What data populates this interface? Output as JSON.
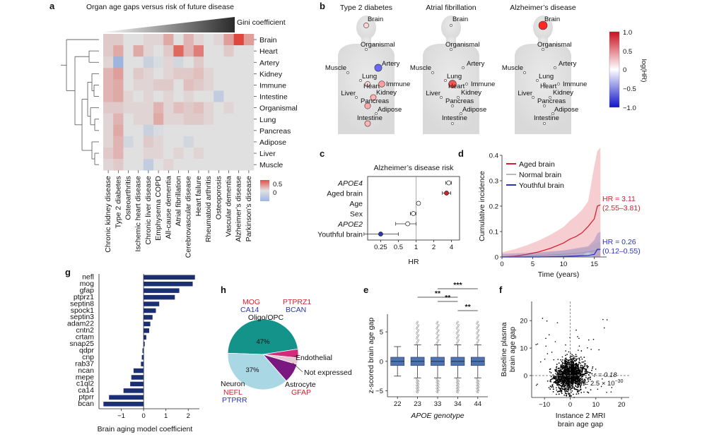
{
  "colors": {
    "red": "#d6202f",
    "blue": "#2a36b8",
    "navy": "#1b2f72",
    "teal": "#13938a",
    "lightblue": "#a9d8e4",
    "purple": "#7a1780",
    "magenta": "#d42a79",
    "pink_grey": "#e9c4d2",
    "boxblue": "#4f75b1"
  },
  "panels": {
    "a": {
      "letter": "a",
      "title": "Organ age gaps versus risk of future disease",
      "gini_label": "Gini coefficient",
      "colorbar_ticks": [
        "0.5",
        "0"
      ]
    },
    "b": {
      "letter": "b",
      "bodies": [
        {
          "title": "Type 2 diabetes",
          "organs": [
            {
              "name": "Brain",
              "hr": 0.2
            },
            {
              "name": "Organismal",
              "hr": 0.0
            },
            {
              "name": "Artery",
              "hr": -0.7
            },
            {
              "name": "Muscle",
              "hr": 0.0
            },
            {
              "name": "Lung",
              "hr": 0.05
            },
            {
              "name": "Heart",
              "hr": 0.2
            },
            {
              "name": "Immune",
              "hr": 0.45
            },
            {
              "name": "Liver",
              "hr": 0.05
            },
            {
              "name": "Kidney",
              "hr": 0.35
            },
            {
              "name": "Pancreas",
              "hr": 0.4
            },
            {
              "name": "Adipose",
              "hr": 0.1
            },
            {
              "name": "Intestine",
              "hr": 0.35
            }
          ]
        },
        {
          "title": "Atrial fibrillation",
          "organs": [
            {
              "name": "Brain",
              "hr": 0.0
            },
            {
              "name": "Organismal",
              "hr": 0.0
            },
            {
              "name": "Artery",
              "hr": 0.0
            },
            {
              "name": "Muscle",
              "hr": 0.0
            },
            {
              "name": "Lung",
              "hr": 0.05
            },
            {
              "name": "Heart",
              "hr": 0.8
            },
            {
              "name": "Immune",
              "hr": 0.0
            },
            {
              "name": "Liver",
              "hr": 0.0
            },
            {
              "name": "Kidney",
              "hr": 0.0
            },
            {
              "name": "Pancreas",
              "hr": 0.0
            },
            {
              "name": "Adipose",
              "hr": 0.0
            },
            {
              "name": "Intestine",
              "hr": 0.0
            }
          ]
        },
        {
          "title": "Alzheimer’s disease",
          "organs": [
            {
              "name": "Brain",
              "hr": 1.0
            },
            {
              "name": "Organismal",
              "hr": 0.0
            },
            {
              "name": "Artery",
              "hr": 0.0
            },
            {
              "name": "Muscle",
              "hr": 0.0
            },
            {
              "name": "Lung",
              "hr": 0.0
            },
            {
              "name": "Heart",
              "hr": 0.0
            },
            {
              "name": "Immune",
              "hr": 0.0
            },
            {
              "name": "Liver",
              "hr": 0.0
            },
            {
              "name": "Kidney",
              "hr": 0.0
            },
            {
              "name": "Pancreas",
              "hr": 0.0
            },
            {
              "name": "Adipose",
              "hr": 0.0
            },
            {
              "name": "Intestine",
              "hr": 0.0
            }
          ]
        }
      ],
      "colorbar_label": "log(HR)",
      "colorbar_ticks": [
        "1.0",
        "0.5",
        "0",
        "−0.5",
        "−1.0"
      ]
    },
    "c": {
      "letter": "c"
    },
    "d": {
      "letter": "d"
    },
    "e": {
      "letter": "e"
    },
    "f": {
      "letter": "f"
    },
    "g": {
      "letter": "g"
    },
    "h": {
      "letter": "h"
    }
  },
  "chart_data": [
    {
      "id": "a",
      "type": "heatmap",
      "title": "Organ age gaps versus risk of future disease",
      "rows": [
        "Brain",
        "Heart",
        "Artery",
        "Kidney",
        "Immune",
        "Intestine",
        "Organismal",
        "Lung",
        "Pancreas",
        "Adipose",
        "Liver",
        "Muscle"
      ],
      "columns": [
        "Chronic kidney disease",
        "Type 2 diabetes",
        "Osteoarthritis",
        "Ischemic heart disease",
        "Chronic liver disease",
        "Emphysema COPD",
        "All-cause dementia",
        "Atrial fibrillation",
        "Cerebrovascular disease",
        "Heart failure",
        "Rheumatoid arthritis",
        "Osteoporosis",
        "Vascular dementia",
        "Alzheimer’s disease",
        "Parkinson’s disease"
      ],
      "values": [
        [
          0.1,
          0.1,
          0,
          0,
          0.05,
          0.05,
          0.25,
          0,
          0.2,
          0.05,
          0,
          0.05,
          0.3,
          0.7,
          0.3
        ],
        [
          0.1,
          0.25,
          0,
          0.25,
          0.05,
          0,
          0.1,
          0.55,
          0.2,
          0.45,
          0,
          0,
          0.1,
          0,
          0
        ],
        [
          0.05,
          -0.45,
          0,
          0,
          -0.15,
          -0.05,
          0.05,
          -0.1,
          0,
          0.1,
          0,
          0,
          0,
          0,
          0
        ],
        [
          0.2,
          0.3,
          0,
          0.1,
          0.05,
          0,
          0.05,
          0.1,
          0.1,
          0.15,
          0.05,
          0,
          0,
          0,
          0
        ],
        [
          0.2,
          0.25,
          0,
          0.05,
          0.05,
          0.1,
          0.1,
          0,
          0.15,
          0.1,
          0.05,
          0,
          0,
          0,
          0
        ],
        [
          0.2,
          0.25,
          0.05,
          0,
          0.05,
          0,
          0.05,
          0,
          0.05,
          0,
          0,
          -0.2,
          0,
          0,
          0
        ],
        [
          0.1,
          0.1,
          0.05,
          0.05,
          0.05,
          0.2,
          0.05,
          0.15,
          0.1,
          0.15,
          0.05,
          0,
          0.05,
          0,
          0
        ],
        [
          0.05,
          0.2,
          0,
          0.05,
          0.05,
          0.25,
          0.05,
          0.05,
          0.1,
          0.1,
          0.05,
          0,
          0,
          0,
          0
        ],
        [
          0.05,
          0.25,
          0,
          0,
          -0.15,
          -0.05,
          0,
          0,
          0,
          0,
          0,
          0,
          0,
          0,
          0
        ],
        [
          0.05,
          0.2,
          -0.1,
          0,
          0.1,
          0.05,
          0,
          0,
          -0.1,
          0,
          0,
          0,
          0,
          0,
          0
        ],
        [
          0.1,
          0.2,
          0,
          0,
          0.05,
          0.05,
          0,
          0.05,
          0,
          0.05,
          0,
          0,
          0,
          0,
          0
        ],
        [
          0.05,
          0.1,
          0,
          0,
          -0.2,
          0,
          0.05,
          0,
          0,
          0,
          0,
          0,
          0,
          0,
          0
        ]
      ],
      "colorbar_ticks": [
        0.5,
        0
      ]
    },
    {
      "id": "c",
      "type": "scatter",
      "title": "Alzheimer’s disease risk",
      "categories": [
        "APOE4",
        "Aged brain",
        "Age",
        "Sex",
        "APOE2",
        "Youthful brain"
      ],
      "hr": [
        3.6,
        3.3,
        1.1,
        0.9,
        0.72,
        0.25
      ],
      "ci_low": [
        3.2,
        2.8,
        1.05,
        0.8,
        0.45,
        0.13
      ],
      "ci_high": [
        4.0,
        3.9,
        1.15,
        1.0,
        1.0,
        0.5
      ],
      "filled": [
        false,
        true,
        false,
        false,
        false,
        true
      ],
      "xlabel": "HR",
      "xticks": [
        "0.25",
        "0.5",
        "1",
        "2",
        "4"
      ],
      "xscale": "log"
    },
    {
      "id": "d",
      "type": "line",
      "xlabel": "Time (years)",
      "ylabel": "Cumulative incidence",
      "xlim": [
        0,
        17
      ],
      "ylim": [
        0,
        0.4
      ],
      "xticks": [
        0,
        5,
        10,
        15
      ],
      "yticks": [
        "0",
        "0.1",
        "0.2",
        "0.3",
        "0.4"
      ],
      "series": [
        {
          "name": "Aged brain",
          "x": [
            0,
            2,
            4,
            6,
            8,
            10,
            11,
            12,
            13,
            14,
            15,
            15.5,
            16
          ],
          "y": [
            0,
            0.003,
            0.01,
            0.02,
            0.035,
            0.055,
            0.07,
            0.08,
            0.095,
            0.12,
            0.15,
            0.2,
            0.205
          ]
        },
        {
          "name": "Normal brain",
          "x": [
            0,
            2,
            4,
            6,
            8,
            10,
            12,
            14,
            15,
            16
          ],
          "y": [
            0,
            0.001,
            0.003,
            0.005,
            0.008,
            0.011,
            0.014,
            0.02,
            0.024,
            0.03
          ]
        },
        {
          "name": "Youthful brain",
          "x": [
            0,
            6,
            10,
            12,
            14,
            15,
            15.5,
            16
          ],
          "y": [
            0,
            0,
            0.002,
            0.004,
            0.006,
            0.01,
            0.03,
            0.03
          ]
        }
      ],
      "annotations": [
        {
          "text": "HR = 3.11",
          "sub": "(2.55–3.81)"
        },
        {
          "text": "HR = 0.26",
          "sub": "(0.12–0.55)"
        }
      ]
    },
    {
      "id": "e",
      "type": "box",
      "xlabel": "APOE genotype",
      "ylabel": "z-scored brain age gap",
      "categories": [
        "22",
        "23",
        "33",
        "34",
        "44"
      ],
      "median": [
        0,
        0,
        0,
        0,
        0
      ],
      "q1": [
        -0.7,
        -0.7,
        -0.7,
        -0.7,
        -0.7
      ],
      "q3": [
        0.7,
        0.7,
        0.7,
        0.7,
        0.7
      ],
      "whisker_low": [
        -2.5,
        -2.8,
        -2.8,
        -2.8,
        -2.8
      ],
      "whisker_high": [
        2.5,
        2.8,
        2.8,
        2.8,
        2.8
      ],
      "ylim": [
        -6,
        8
      ],
      "yticks": [
        -5,
        0,
        5
      ],
      "significance": [
        {
          "pair": [
            "23",
            "34"
          ],
          "label": "**"
        },
        {
          "pair": [
            "33",
            "44"
          ],
          "label": "***"
        },
        {
          "pair": [
            "33",
            "34"
          ],
          "label": "**"
        },
        {
          "pair": [
            "34",
            "44"
          ],
          "label": "**"
        }
      ]
    },
    {
      "id": "f",
      "type": "scatter",
      "xlabel": "Instance 2 MRI brain age gap",
      "ylabel": "Baseline plasma brain age gap",
      "xlim": [
        -15,
        23
      ],
      "ylim": [
        -8,
        27
      ],
      "xticks": [
        -10,
        0,
        10,
        20
      ],
      "yticks": [
        0,
        10,
        20
      ],
      "r_label": "r = 0.18",
      "p_label": "P = 2.5 × 10",
      "p_exp": "−30"
    },
    {
      "id": "g",
      "type": "bar",
      "orientation": "horizontal",
      "xlabel": "Brain aging model coefficient",
      "categories": [
        "nefl",
        "mog",
        "gfap",
        "ptprz1",
        "septin8",
        "spock1",
        "septin3",
        "adam22",
        "cntn2",
        "crtam",
        "snap25",
        "qdpr",
        "cnp",
        "rab37",
        "ncan",
        "mepe",
        "c1ql2",
        "ca14",
        "ptprr",
        "bcan"
      ],
      "values": [
        2.3,
        2.2,
        1.6,
        1.4,
        0.7,
        0.55,
        0.4,
        0.3,
        0.25,
        0.12,
        0.05,
        -0.05,
        -0.08,
        -0.12,
        -0.45,
        -0.55,
        -0.6,
        -0.9,
        -1.55,
        -1.8
      ],
      "xlim": [
        -2,
        2.5
      ],
      "xticks": [
        -1,
        0,
        1,
        2
      ]
    },
    {
      "id": "h",
      "type": "pie",
      "labels": [
        "Oligo/OPC",
        "Endothelial",
        "Not expressed",
        "Astrocyte",
        "Neuron"
      ],
      "values": [
        47,
        4,
        3,
        9,
        37
      ],
      "slice_labels": [
        "47%",
        "",
        "",
        "",
        "37%"
      ],
      "gene_labels": {
        "oligo_red": [
          "MOG",
          "PTPRZ1"
        ],
        "oligo_blue": [
          "CA14",
          "BCAN"
        ],
        "neuron_red": "NEFL",
        "neuron_blue": "PTPRR",
        "astro_red": "GFAP"
      }
    }
  ]
}
